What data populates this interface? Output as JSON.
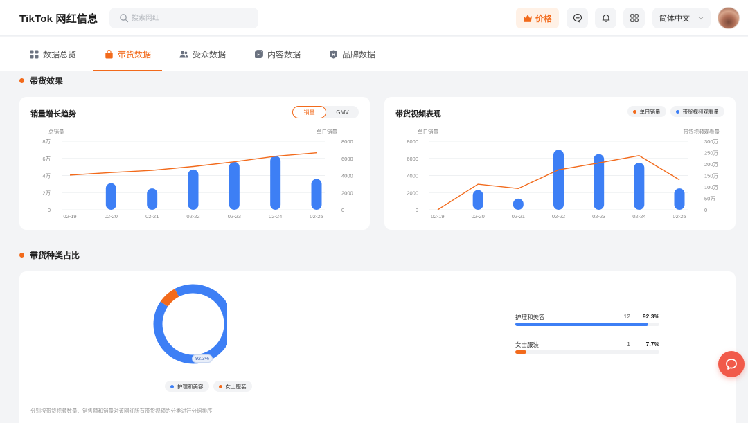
{
  "header": {
    "title": "TikTok 网红信息",
    "search_placeholder": "搜索网红",
    "price_label": "价格",
    "language": "简体中文"
  },
  "tabs": [
    {
      "label": "数据总览",
      "icon": "grid-icon",
      "active": false
    },
    {
      "label": "带货数据",
      "icon": "shopping-bag-icon",
      "active": true
    },
    {
      "label": "受众数据",
      "icon": "users-icon",
      "active": false
    },
    {
      "label": "内容数据",
      "icon": "video-icon",
      "active": false
    },
    {
      "label": "品牌数据",
      "icon": "brand-badge-icon",
      "active": false
    }
  ],
  "sections": {
    "sales_effect": "带货效果",
    "category_share": "带货种类占比"
  },
  "sales_trend_card": {
    "title": "销量增长趋势",
    "toggle": [
      "销量",
      "GMV"
    ],
    "toggle_active": "销量"
  },
  "video_perf_card": {
    "title": "带货视频表现",
    "legend": [
      "单日销量",
      "带货视频观看量"
    ]
  },
  "colors": {
    "accent": "#f26a1b",
    "bar_blue": "#3d7ff5",
    "line_orange": "#f26a1b"
  },
  "chart_data": [
    {
      "type": "bar",
      "title": "销量增长趋势",
      "categories": [
        "02-19",
        "02-20",
        "02-21",
        "02-22",
        "02-23",
        "02-24",
        "02-25"
      ],
      "y_left_label": "总销量",
      "y_right_label": "单日销量",
      "y_left_ticks": [
        "0",
        "2万",
        "4万",
        "6万",
        "8万"
      ],
      "y_right_ticks": [
        "0",
        "2000",
        "4000",
        "6000",
        "8000"
      ],
      "y_left_lim": [
        0,
        80000
      ],
      "y_right_lim": [
        0,
        8000
      ],
      "series": [
        {
          "type": "bar",
          "axis": "right",
          "values": [
            0,
            3100,
            2500,
            4700,
            5600,
            6300,
            3600
          ]
        },
        {
          "type": "line",
          "axis": "left",
          "values": [
            40500,
            43500,
            46000,
            50500,
            56000,
            62500,
            66500
          ]
        }
      ]
    },
    {
      "type": "bar",
      "title": "带货视频表现",
      "categories": [
        "02-19",
        "02-20",
        "02-21",
        "02-22",
        "02-23",
        "02-24",
        "02-25"
      ],
      "y_left_label": "单日销量",
      "y_right_label": "带货视频观看量",
      "y_left_ticks": [
        "0",
        "2000",
        "4000",
        "6000",
        "8000"
      ],
      "y_right_ticks": [
        "0",
        "50万",
        "100万",
        "150万",
        "200万",
        "250万",
        "300万"
      ],
      "y_left_lim": [
        0,
        8000
      ],
      "y_right_lim": [
        0,
        3000000
      ],
      "series": [
        {
          "name": "单日销量",
          "type": "bar",
          "axis": "left",
          "values": [
            0,
            2300,
            1300,
            7000,
            6500,
            5500,
            2500
          ]
        },
        {
          "name": "带货视频观看量",
          "type": "line",
          "axis": "right",
          "values": [
            0,
            1120000,
            930000,
            1750000,
            2050000,
            2370000,
            1310000
          ]
        }
      ]
    },
    {
      "type": "pie",
      "title": "",
      "categories": [
        "护理和美容",
        "女士服装"
      ],
      "values": [
        92.3,
        7.7
      ],
      "counts": [
        12,
        1
      ],
      "center_tag": "92.3%"
    }
  ],
  "category_rows": [
    {
      "label": "护理和美容",
      "count": "12",
      "pct": "92.3%",
      "fraction": 0.923,
      "color": "#3d7ff5"
    },
    {
      "label": "女士服装",
      "count": "1",
      "pct": "7.7%",
      "fraction": 0.077,
      "color": "#f26a1b"
    }
  ],
  "footnote": "分别按带货视频数量、销售额和销量对该网红所有带货视频的分类进行分组排序"
}
